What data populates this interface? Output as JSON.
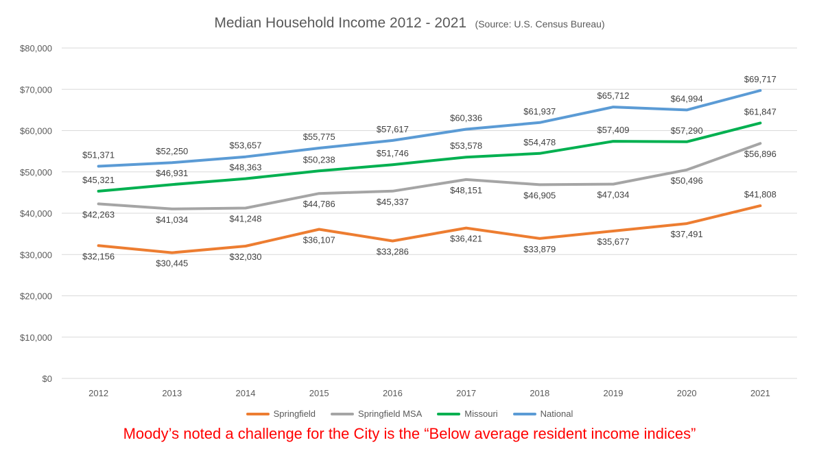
{
  "chart_data": {
    "type": "line",
    "title": "Median Household Income 2012 - 2021",
    "subtitle": "(Source: U.S. Census Bureau)",
    "xlabel": "",
    "ylabel": "",
    "categories": [
      "2012",
      "2013",
      "2014",
      "2015",
      "2016",
      "2017",
      "2018",
      "2019",
      "2020",
      "2021"
    ],
    "ylim": [
      0,
      80000
    ],
    "yticks": [
      0,
      10000,
      20000,
      30000,
      40000,
      50000,
      60000,
      70000,
      80000
    ],
    "ytick_labels": [
      "$0",
      "$10,000",
      "$20,000",
      "$30,000",
      "$40,000",
      "$50,000",
      "$60,000",
      "$70,000",
      "$80,000"
    ],
    "grid": true,
    "legend_position": "bottom",
    "series": [
      {
        "name": "Springfield",
        "color": "#ed7d31",
        "values": [
          32156,
          30445,
          32030,
          36107,
          33286,
          36421,
          33879,
          35677,
          37491,
          41808
        ],
        "labels": [
          "$32,156",
          "$30,445",
          "$32,030",
          "$36,107",
          "$33,286",
          "$36,421",
          "$33,879",
          "$35,677",
          "$37,491",
          "$41,808"
        ],
        "label_position": [
          "below",
          "below",
          "below",
          "below",
          "below",
          "below",
          "below",
          "below",
          "below",
          "above"
        ]
      },
      {
        "name": "Springfield MSA",
        "color": "#a5a5a5",
        "values": [
          42263,
          41034,
          41248,
          44786,
          45337,
          48151,
          46905,
          47034,
          50496,
          56896
        ],
        "labels": [
          "$42,263",
          "$41,034",
          "$41,248",
          "$44,786",
          "$45,337",
          "$48,151",
          "$46,905",
          "$47,034",
          "$50,496",
          "$56,896"
        ],
        "label_position": [
          "below",
          "below",
          "below",
          "below",
          "below",
          "below",
          "below",
          "below",
          "below",
          "below"
        ]
      },
      {
        "name": "Missouri",
        "color": "#00b050",
        "values": [
          45321,
          46931,
          48363,
          50238,
          51746,
          53578,
          54478,
          57409,
          57290,
          61847
        ],
        "labels": [
          "$45,321",
          "$46,931",
          "$48,363",
          "$50,238",
          "$51,746",
          "$53,578",
          "$54,478",
          "$57,409",
          "$57,290",
          "$61,847"
        ],
        "label_position": [
          "above",
          "above",
          "above",
          "above",
          "above",
          "above",
          "above",
          "above",
          "above",
          "above"
        ]
      },
      {
        "name": "National",
        "color": "#5b9bd5",
        "values": [
          51371,
          52250,
          53657,
          55775,
          57617,
          60336,
          61937,
          65712,
          64994,
          69717
        ],
        "labels": [
          "$51,371",
          "$52,250",
          "$53,657",
          "$55,775",
          "$57,617",
          "$60,336",
          "$61,937",
          "$65,712",
          "$64,994",
          "$69,717"
        ],
        "label_position": [
          "above",
          "above",
          "above",
          "above",
          "above",
          "above",
          "above",
          "above",
          "above",
          "above"
        ]
      }
    ]
  },
  "footnote": "Moody’s noted a challenge for the City is the “Below average resident income indices”",
  "colors": {
    "gridline": "#d9d9d9",
    "axis_text": "#595959",
    "label_text": "#404040",
    "footnote": "#ff0000"
  }
}
